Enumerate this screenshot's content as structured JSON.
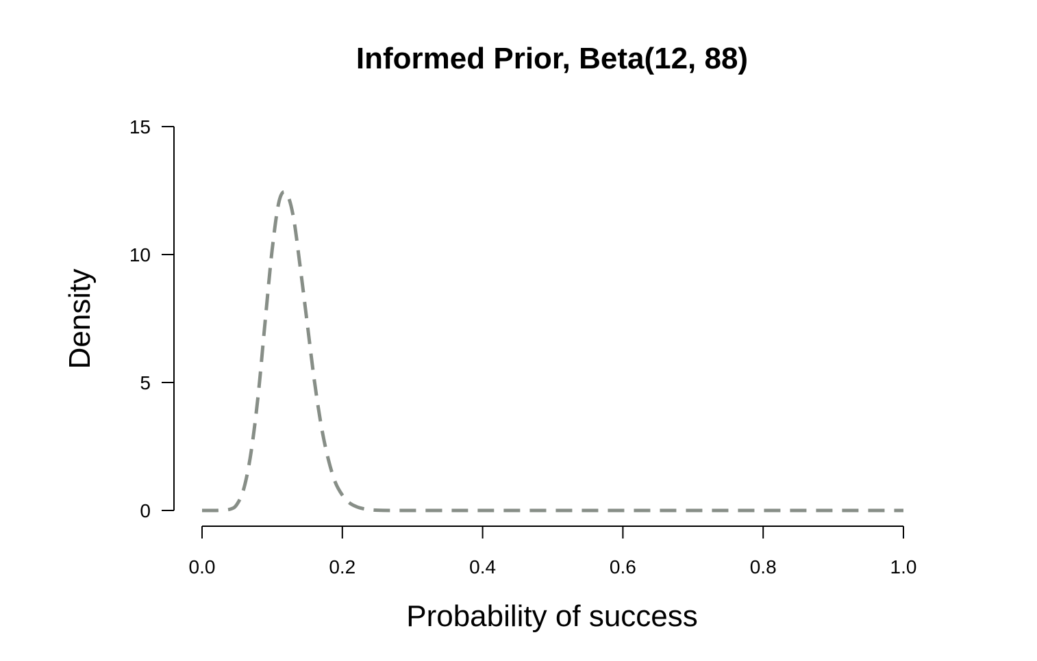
{
  "chart_data": {
    "type": "line",
    "title": "Informed Prior, Beta(12, 88)",
    "xlabel": "Probability of success",
    "ylabel": "Density",
    "xlim": [
      0,
      1
    ],
    "ylim": [
      0,
      15
    ],
    "x_ticks": [
      "0.0",
      "0.2",
      "0.4",
      "0.6",
      "0.8",
      "1.0"
    ],
    "y_ticks": [
      "0",
      "5",
      "10",
      "15"
    ],
    "grid": false,
    "legend": "none",
    "series": [
      {
        "line_style": "dashed",
        "color": "#878e87",
        "x": [
          0.0,
          0.02,
          0.04,
          0.05,
          0.06,
          0.07,
          0.08,
          0.09,
          0.1,
          0.11,
          0.12,
          0.13,
          0.14,
          0.15,
          0.16,
          0.17,
          0.18,
          0.19,
          0.2,
          0.21,
          0.22,
          0.23,
          0.24,
          0.25,
          0.27,
          0.3,
          0.35,
          0.4,
          0.5,
          0.6,
          0.7,
          0.8,
          0.9,
          1.0
        ],
        "y": [
          0.0,
          0.0,
          0.05,
          0.25,
          0.9,
          2.3,
          4.5,
          7.4,
          10.2,
          12.1,
          12.4,
          11.5,
          9.5,
          7.3,
          5.1,
          3.3,
          2.0,
          1.1,
          0.6,
          0.3,
          0.15,
          0.07,
          0.03,
          0.01,
          0.0,
          0.0,
          0.0,
          0.0,
          0.0,
          0.0,
          0.0,
          0.0,
          0.0,
          0.0
        ]
      }
    ]
  }
}
